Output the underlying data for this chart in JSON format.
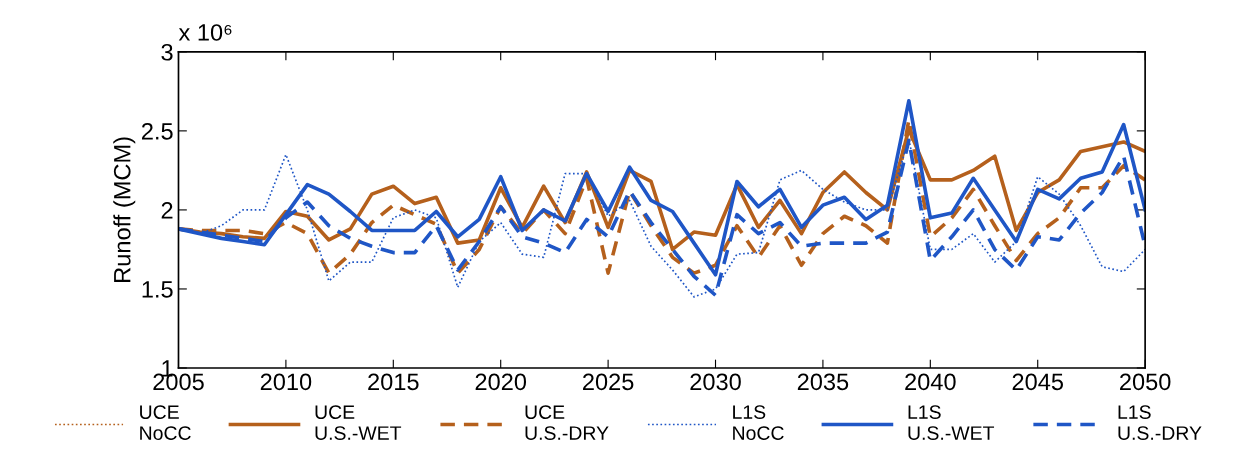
{
  "chart_data": {
    "type": "line",
    "ylabel": "Runoff (MCM)",
    "annotations": [
      "x 10⁶"
    ],
    "x": [
      2005,
      2006,
      2007,
      2008,
      2009,
      2010,
      2011,
      2012,
      2013,
      2014,
      2015,
      2016,
      2017,
      2018,
      2019,
      2020,
      2021,
      2022,
      2023,
      2024,
      2025,
      2026,
      2027,
      2028,
      2029,
      2030,
      2031,
      2032,
      2033,
      2034,
      2035,
      2036,
      2037,
      2038,
      2039,
      2040,
      2041,
      2042,
      2043,
      2044,
      2045,
      2046,
      2047,
      2048,
      2049,
      2050
    ],
    "xlim": [
      2005,
      2050
    ],
    "xticks": [
      2005,
      2010,
      2015,
      2020,
      2025,
      2030,
      2035,
      2040,
      2045,
      2050
    ],
    "ylim": [
      1,
      3
    ],
    "yticks": [
      1,
      1.5,
      2,
      2.5,
      3
    ],
    "grid": false,
    "legend": "bottom",
    "marker": "none",
    "series": [
      {
        "name": "UCE\nNoCC",
        "color": "#b5601c",
        "line_style": "dotted",
        "values": [
          null,
          null,
          null,
          null,
          null,
          null,
          null,
          null,
          null,
          null,
          null,
          null,
          null,
          null,
          null,
          null,
          null,
          null,
          null,
          null,
          null,
          null,
          null,
          null,
          null,
          null,
          null,
          null,
          null,
          null,
          null,
          null,
          null,
          null,
          null,
          null,
          null,
          null,
          null,
          null,
          null,
          null,
          null,
          null,
          null,
          null
        ]
      },
      {
        "name": "UCE\nU.S.-WET",
        "color": "#b5601c",
        "line_style": "solid",
        "values": [
          1.88,
          1.86,
          1.85,
          1.83,
          1.82,
          1.99,
          1.96,
          1.81,
          1.88,
          2.1,
          2.15,
          2.04,
          2.08,
          1.79,
          1.81,
          2.14,
          1.89,
          2.15,
          1.92,
          2.24,
          1.89,
          2.25,
          2.18,
          1.75,
          1.86,
          1.84,
          2.16,
          1.89,
          2.06,
          1.85,
          2.11,
          2.24,
          2.11,
          2.0,
          2.51,
          2.19,
          2.19,
          2.25,
          2.34,
          1.87,
          2.11,
          2.19,
          2.37,
          2.4,
          2.43,
          2.37
        ]
      },
      {
        "name": "UCE\nU.S.-DRY",
        "color": "#b5601c",
        "line_style": "dashed",
        "values": [
          1.88,
          1.87,
          1.87,
          1.87,
          1.85,
          1.92,
          1.85,
          1.6,
          1.72,
          1.92,
          2.03,
          1.97,
          1.91,
          1.6,
          1.75,
          2.02,
          1.85,
          2.0,
          1.85,
          2.2,
          1.6,
          2.12,
          1.9,
          1.7,
          1.6,
          1.65,
          1.9,
          1.7,
          1.9,
          1.65,
          1.85,
          1.96,
          1.9,
          1.79,
          2.57,
          1.83,
          1.95,
          2.13,
          1.9,
          1.68,
          1.85,
          1.95,
          2.14,
          2.14,
          2.28,
          2.19
        ]
      },
      {
        "name": "L1S\nNoCC",
        "color": "#1f56c6",
        "line_style": "dotted",
        "values": [
          1.88,
          1.85,
          1.9,
          2.0,
          2.0,
          2.35,
          2.0,
          1.55,
          1.67,
          1.67,
          1.95,
          2.0,
          1.95,
          1.51,
          1.8,
          1.92,
          1.72,
          1.7,
          2.23,
          2.23,
          1.96,
          2.06,
          1.77,
          1.62,
          1.45,
          1.5,
          1.72,
          1.73,
          2.19,
          2.25,
          2.13,
          2.05,
          2.0,
          2.0,
          2.45,
          1.75,
          1.75,
          1.85,
          1.67,
          1.8,
          2.21,
          2.1,
          1.9,
          1.64,
          1.61,
          1.75
        ]
      },
      {
        "name": "L1S\nU.S.-WET",
        "color": "#1f56c6",
        "line_style": "solid",
        "values": [
          1.88,
          1.85,
          1.82,
          1.8,
          1.78,
          1.97,
          2.16,
          2.1,
          1.99,
          1.87,
          1.87,
          1.87,
          1.99,
          1.83,
          1.94,
          2.21,
          1.87,
          2.0,
          1.93,
          2.23,
          1.99,
          2.27,
          2.06,
          1.99,
          1.79,
          1.59,
          2.18,
          2.02,
          2.13,
          1.89,
          2.03,
          2.08,
          1.94,
          2.03,
          2.69,
          1.95,
          1.98,
          2.2,
          2.0,
          1.8,
          2.13,
          2.07,
          2.2,
          2.24,
          2.54,
          2.0
        ]
      },
      {
        "name": "L1S\nU.S.-DRY",
        "color": "#1f56c6",
        "line_style": "dashed",
        "values": [
          1.88,
          1.86,
          1.84,
          1.82,
          1.8,
          1.95,
          2.05,
          1.9,
          1.82,
          1.77,
          1.73,
          1.73,
          1.9,
          1.62,
          1.8,
          2.02,
          1.83,
          1.79,
          1.73,
          1.94,
          1.83,
          2.12,
          1.92,
          1.75,
          1.58,
          1.46,
          1.97,
          1.85,
          1.92,
          1.77,
          1.79,
          1.79,
          1.79,
          1.86,
          2.44,
          1.68,
          1.83,
          2.0,
          1.75,
          1.62,
          1.83,
          1.81,
          1.98,
          2.11,
          2.34,
          1.77
        ]
      }
    ]
  }
}
